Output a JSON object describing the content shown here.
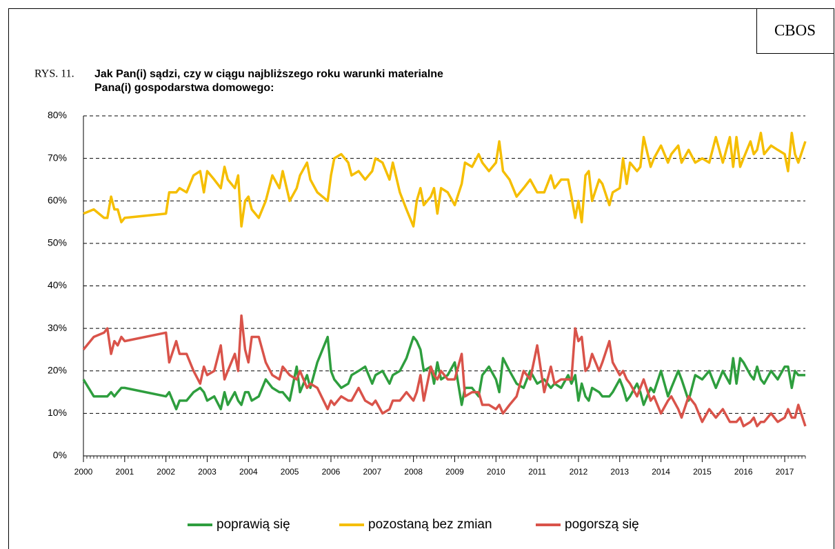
{
  "source": "CBOS",
  "chart_data": {
    "type": "line",
    "figure_label": "RYS. 11.",
    "title": [
      "Jak Pan(i) sądzi, czy w ciągu najbliższego roku warunki materialne",
      "Pana(i) gospodarstwa domowego:"
    ],
    "x": [
      2000,
      2000.25,
      2000.5,
      2000.58,
      2000.67,
      2000.75,
      2000.83,
      2000.92,
      2001,
      2002,
      2002.08,
      2002.25,
      2002.33,
      2002.5,
      2002.67,
      2002.83,
      2002.92,
      2003,
      2003.17,
      2003.33,
      2003.42,
      2003.5,
      2003.67,
      2003.75,
      2003.83,
      2003.92,
      2004,
      2004.08,
      2004.25,
      2004.42,
      2004.58,
      2004.75,
      2004.83,
      2005,
      2005.17,
      2005.25,
      2005.42,
      2005.5,
      2005.67,
      2005.92,
      2006,
      2006.08,
      2006.25,
      2006.42,
      2006.5,
      2006.67,
      2006.83,
      2007,
      2007.08,
      2007.25,
      2007.42,
      2007.5,
      2007.67,
      2007.83,
      2008,
      2008.08,
      2008.17,
      2008.25,
      2008.42,
      2008.5,
      2008.58,
      2008.67,
      2008.83,
      2009,
      2009.17,
      2009.25,
      2009.42,
      2009.58,
      2009.67,
      2009.83,
      2010,
      2010.08,
      2010.17,
      2010.33,
      2010.5,
      2010.67,
      2010.83,
      2011,
      2011.17,
      2011.33,
      2011.42,
      2011.58,
      2011.75,
      2011.83,
      2011.92,
      2012,
      2012.08,
      2012.17,
      2012.25,
      2012.33,
      2012.5,
      2012.58,
      2012.75,
      2012.83,
      2013,
      2013.08,
      2013.17,
      2013.25,
      2013.42,
      2013.5,
      2013.58,
      2013.75,
      2013.83,
      2014,
      2014.17,
      2014.25,
      2014.42,
      2014.5,
      2014.67,
      2014.83,
      2015,
      2015.17,
      2015.33,
      2015.5,
      2015.67,
      2015.75,
      2015.83,
      2015.92,
      2016,
      2016.17,
      2016.25,
      2016.33,
      2016.42,
      2016.5,
      2016.67,
      2016.83,
      2017,
      2017.08,
      2017.17,
      2017.25,
      2017.33,
      2017.5
    ],
    "series": [
      {
        "name": "poprawią się",
        "color": "#2e9e3e",
        "values": [
          18,
          14,
          14,
          14,
          15,
          14,
          15,
          16,
          16,
          14,
          15,
          11,
          13,
          13,
          15,
          16,
          15,
          13,
          14,
          11,
          15,
          12,
          15,
          13,
          12,
          15,
          15,
          13,
          14,
          18,
          16,
          15,
          15,
          13,
          21,
          15,
          19,
          16,
          22,
          28,
          20,
          18,
          16,
          17,
          19,
          20,
          21,
          17,
          19,
          20,
          17,
          19,
          20,
          23,
          28,
          27,
          25,
          20,
          21,
          17,
          22,
          18,
          19,
          22,
          12,
          16,
          16,
          14,
          19,
          21,
          18,
          15,
          23,
          20,
          17,
          16,
          20,
          17,
          18,
          16,
          17,
          16,
          19,
          17,
          19,
          13,
          17,
          14,
          13,
          16,
          15,
          14,
          14,
          15,
          18,
          16,
          13,
          14,
          17,
          15,
          12,
          16,
          15,
          20,
          14,
          16,
          20,
          18,
          13,
          19,
          18,
          20,
          16,
          20,
          17,
          23,
          17,
          23,
          22,
          19,
          18,
          21,
          18,
          17,
          20,
          18,
          21,
          21,
          16,
          20,
          19,
          19
        ]
      },
      {
        "name": "pozostaną bez zmian",
        "color": "#f5be00",
        "values": [
          57,
          58,
          56,
          56,
          61,
          58,
          58,
          55,
          56,
          57,
          62,
          62,
          63,
          62,
          66,
          67,
          62,
          67,
          65,
          63,
          68,
          65,
          63,
          66,
          54,
          60,
          61,
          58,
          56,
          60,
          66,
          63,
          67,
          60,
          63,
          66,
          69,
          65,
          62,
          60,
          66,
          70,
          71,
          69,
          66,
          67,
          65,
          67,
          70,
          69,
          65,
          69,
          62,
          58,
          54,
          60,
          63,
          59,
          61,
          63,
          57,
          63,
          62,
          59,
          64,
          69,
          68,
          71,
          69,
          67,
          69,
          74,
          67,
          65,
          61,
          63,
          65,
          62,
          62,
          66,
          63,
          65,
          65,
          61,
          56,
          60,
          55,
          66,
          67,
          60,
          65,
          64,
          59,
          62,
          63,
          70,
          64,
          69,
          67,
          68,
          75,
          68,
          70,
          73,
          69,
          71,
          73,
          69,
          72,
          69,
          70,
          69,
          75,
          69,
          75,
          68,
          75,
          68,
          70,
          74,
          71,
          72,
          76,
          71,
          73,
          72,
          71,
          67,
          76,
          71,
          69,
          74
        ]
      },
      {
        "name": "pogorszą się",
        "color": "#d9534a",
        "values": [
          25,
          28,
          29,
          30,
          24,
          27,
          26,
          28,
          27,
          29,
          22,
          27,
          24,
          24,
          20,
          17,
          21,
          19,
          20,
          26,
          18,
          20,
          24,
          20,
          33,
          25,
          22,
          28,
          28,
          22,
          19,
          18,
          21,
          19,
          18,
          20,
          16,
          17,
          16,
          11,
          13,
          12,
          14,
          13,
          13,
          16,
          13,
          12,
          13,
          10,
          11,
          13,
          13,
          15,
          13,
          15,
          19,
          13,
          21,
          19,
          18,
          20,
          18,
          18,
          24,
          14,
          15,
          15,
          12,
          12,
          11,
          12,
          10,
          12,
          14,
          20,
          18,
          26,
          15,
          21,
          17,
          18,
          18,
          18,
          30,
          27,
          28,
          20,
          21,
          24,
          20,
          22,
          27,
          22,
          19,
          20,
          18,
          17,
          14,
          16,
          18,
          13,
          14,
          10,
          13,
          14,
          11,
          9,
          14,
          12,
          8,
          11,
          9,
          11,
          8,
          8,
          8,
          9,
          7,
          8,
          9,
          7,
          8,
          8,
          10,
          8,
          9,
          11,
          9,
          9,
          12,
          7
        ]
      }
    ],
    "xlim": [
      2000,
      2017.5
    ],
    "xticks": [
      2000,
      2001,
      2002,
      2003,
      2004,
      2005,
      2006,
      2007,
      2008,
      2009,
      2010,
      2011,
      2012,
      2013,
      2014,
      2015,
      2016,
      2017
    ],
    "ylim": [
      0,
      80
    ],
    "yticks": [
      {
        "value": 0,
        "label": "0%"
      },
      {
        "value": 10,
        "label": "10%"
      },
      {
        "value": 20,
        "label": "20%"
      },
      {
        "value": 30,
        "label": "30%"
      },
      {
        "value": 40,
        "label": "40%"
      },
      {
        "value": 50,
        "label": "50%"
      },
      {
        "value": 60,
        "label": "60%"
      },
      {
        "value": 70,
        "label": "70%"
      },
      {
        "value": 80,
        "label": "80%"
      }
    ],
    "grid": true,
    "legend": "bottom"
  }
}
